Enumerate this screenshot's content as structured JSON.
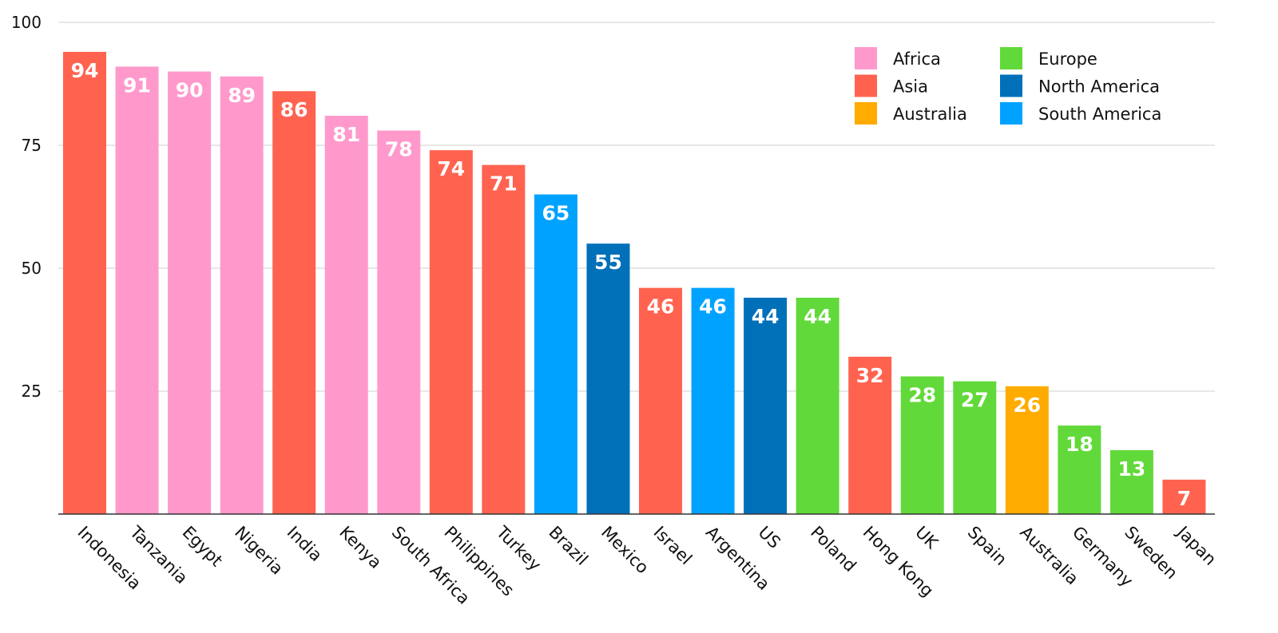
{
  "chart_data": {
    "type": "bar",
    "categories": [
      "Indonesia",
      "Tanzania",
      "Egypt",
      "Nigeria",
      "India",
      "Kenya",
      "South Africa",
      "Philippines",
      "Turkey",
      "Brazil",
      "Mexico",
      "Israel",
      "Argentina",
      "US",
      "Poland",
      "Hong Kong",
      "UK",
      "Spain",
      "Australia",
      "Germany",
      "Sweden",
      "Japan"
    ],
    "values": [
      94,
      91,
      90,
      89,
      86,
      81,
      78,
      74,
      71,
      65,
      55,
      46,
      46,
      44,
      44,
      32,
      28,
      27,
      26,
      18,
      13,
      7
    ],
    "groups": [
      "Asia",
      "Africa",
      "Africa",
      "Africa",
      "Asia",
      "Africa",
      "Africa",
      "Asia",
      "Asia",
      "South America",
      "North America",
      "Asia",
      "South America",
      "North America",
      "Europe",
      "Asia",
      "Europe",
      "Europe",
      "Australia",
      "Europe",
      "Europe",
      "Asia"
    ],
    "legend": [
      {
        "name": "Africa",
        "color": "#ff99cc"
      },
      {
        "name": "Asia",
        "color": "#ff6350"
      },
      {
        "name": "Australia",
        "color": "#ffab00"
      },
      {
        "name": "Europe",
        "color": "#62d93a"
      },
      {
        "name": "North America",
        "color": "#0070b9"
      },
      {
        "name": "South America",
        "color": "#00a2ff"
      }
    ],
    "yticks": [
      25,
      50,
      75,
      100
    ],
    "ylim": [
      0,
      100
    ],
    "grid": true,
    "legend_position": "top-right",
    "title": "",
    "xlabel": "",
    "ylabel": ""
  }
}
